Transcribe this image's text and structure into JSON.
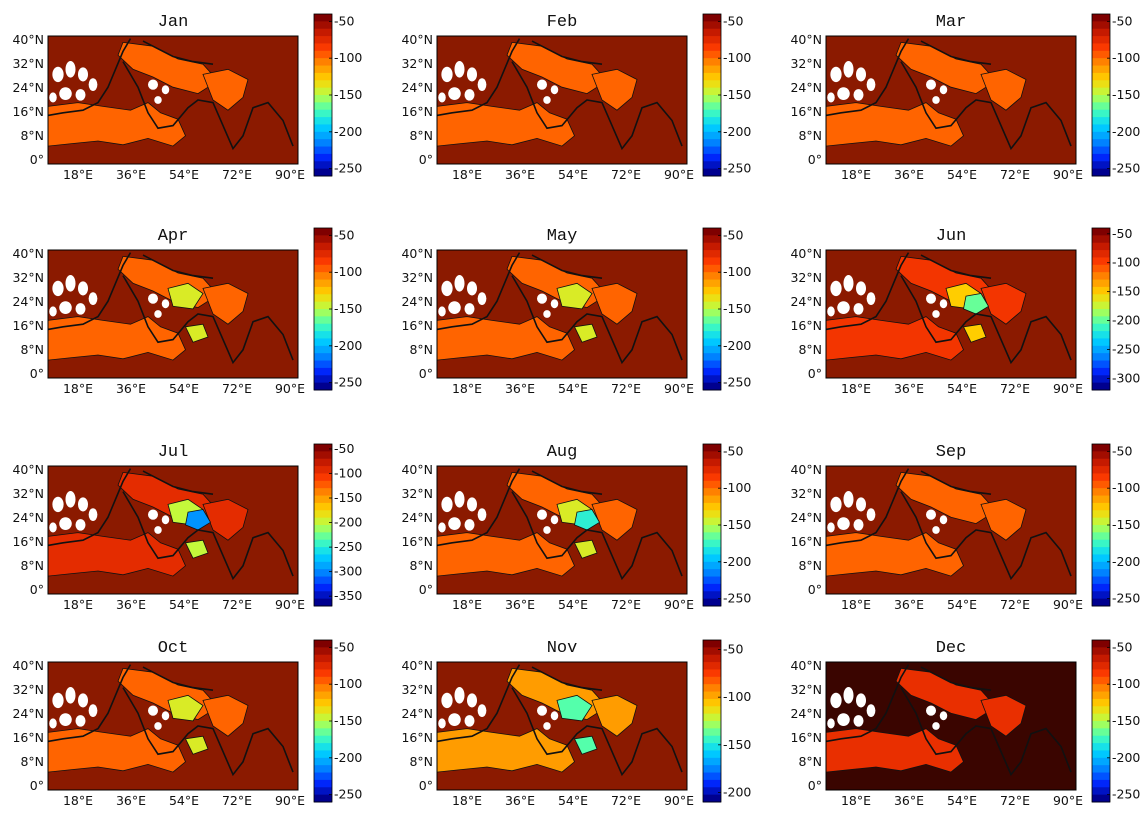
{
  "panels": [
    {
      "title": "Jan",
      "cb_labels": [
        "-50",
        "-100",
        "-150",
        "-200",
        "-250"
      ],
      "cb_min": -260,
      "cb_max": -40,
      "lat_labels": [
        "40°N",
        "32°N",
        "24°N",
        "16°N",
        "8°N",
        "0°"
      ],
      "lon_labels": [
        "18°E",
        "36°E",
        "54°E",
        "72°E",
        "90°E"
      ],
      "patches": [
        {
          "level": -95
        }
      ]
    },
    {
      "title": "Feb",
      "cb_labels": [
        "-50",
        "-100",
        "-150",
        "-200",
        "-250"
      ],
      "cb_min": -260,
      "cb_max": -40,
      "lat_labels": [
        "40°N",
        "32°N",
        "24°N",
        "16°N",
        "8°N",
        "0°"
      ],
      "lon_labels": [
        "18°E",
        "36°E",
        "54°E",
        "72°E",
        "90°E"
      ],
      "patches": [
        {
          "level": -95
        }
      ]
    },
    {
      "title": "Mar",
      "cb_labels": [
        "-50",
        "-100",
        "-150",
        "-200",
        "-250"
      ],
      "cb_min": -260,
      "cb_max": -40,
      "lat_labels": [
        "40°N",
        "32°N",
        "24°N",
        "16°N",
        "8°N",
        "0°"
      ],
      "lon_labels": [
        "18°E",
        "36°E",
        "54°E",
        "72°E",
        "90°E"
      ],
      "patches": [
        {
          "level": -95
        }
      ]
    },
    {
      "title": "Apr",
      "cb_labels": [
        "-50",
        "-100",
        "-150",
        "-200",
        "-250"
      ],
      "cb_min": -260,
      "cb_max": -40,
      "lat_labels": [
        "40°N",
        "32°N",
        "24°N",
        "16°N",
        "8°N",
        "0°"
      ],
      "lon_labels": [
        "18°E",
        "36°E",
        "54°E",
        "72°E",
        "90°E"
      ],
      "patches": [
        {
          "level": -95
        },
        {
          "level": -140
        }
      ]
    },
    {
      "title": "May",
      "cb_labels": [
        "-50",
        "-100",
        "-150",
        "-200",
        "-250"
      ],
      "cb_min": -260,
      "cb_max": -40,
      "lat_labels": [
        "40°N",
        "32°N",
        "24°N",
        "16°N",
        "8°N",
        "0°"
      ],
      "lon_labels": [
        "18°E",
        "36°E",
        "54°E",
        "72°E",
        "90°E"
      ],
      "patches": [
        {
          "level": -95
        },
        {
          "level": -140
        }
      ]
    },
    {
      "title": "Jun",
      "cb_labels": [
        "-50",
        "-100",
        "-150",
        "-200",
        "-250",
        "-300"
      ],
      "cb_min": -320,
      "cb_max": -40,
      "lat_labels": [
        "40°N",
        "32°N",
        "24°N",
        "16°N",
        "8°N",
        "0°"
      ],
      "lon_labels": [
        "18°E",
        "36°E",
        "54°E",
        "72°E",
        "90°E"
      ],
      "patches": [
        {
          "level": -90
        },
        {
          "level": -150
        },
        {
          "level": -200
        }
      ]
    },
    {
      "title": "Jul",
      "cb_labels": [
        "-50",
        "-100",
        "-150",
        "-200",
        "-250",
        "-300",
        "-350"
      ],
      "cb_min": -370,
      "cb_max": -40,
      "lat_labels": [
        "40°N",
        "32°N",
        "24°N",
        "16°N",
        "8°N",
        "0°"
      ],
      "lon_labels": [
        "18°E",
        "36°E",
        "54°E",
        "72°E",
        "90°E"
      ],
      "patches": [
        {
          "level": -90
        },
        {
          "level": -200
        },
        {
          "level": -300
        }
      ]
    },
    {
      "title": "Aug",
      "cb_labels": [
        "-50",
        "-100",
        "-150",
        "-200",
        "-250"
      ],
      "cb_min": -260,
      "cb_max": -40,
      "lat_labels": [
        "40°N",
        "32°N",
        "24°N",
        "16°N",
        "8°N",
        "0°"
      ],
      "lon_labels": [
        "18°E",
        "36°E",
        "54°E",
        "72°E",
        "90°E"
      ],
      "patches": [
        {
          "level": -95
        },
        {
          "level": -140
        },
        {
          "level": -180
        }
      ]
    },
    {
      "title": "Sep",
      "cb_labels": [
        "-50",
        "-100",
        "-150",
        "-200",
        "-250"
      ],
      "cb_min": -260,
      "cb_max": -40,
      "lat_labels": [
        "40°N",
        "32°N",
        "24°N",
        "16°N",
        "8°N",
        "0°"
      ],
      "lon_labels": [
        "18°E",
        "36°E",
        "54°E",
        "72°E",
        "90°E"
      ],
      "patches": [
        {
          "level": -95
        }
      ]
    },
    {
      "title": "Oct",
      "cb_labels": [
        "-50",
        "-100",
        "-150",
        "-200",
        "-250"
      ],
      "cb_min": -260,
      "cb_max": -40,
      "lat_labels": [
        "40°N",
        "32°N",
        "24°N",
        "16°N",
        "8°N",
        "0°"
      ],
      "lon_labels": [
        "18°E",
        "36°E",
        "54°E",
        "72°E",
        "90°E"
      ],
      "patches": [
        {
          "level": -95
        },
        {
          "level": -140
        }
      ]
    },
    {
      "title": "Nov",
      "cb_labels": [
        "-50",
        "-100",
        "-150",
        "-200"
      ],
      "cb_min": -210,
      "cb_max": -40,
      "lat_labels": [
        "40°N",
        "32°N",
        "24°N",
        "16°N",
        "8°N",
        "0°"
      ],
      "lon_labels": [
        "18°E",
        "36°E",
        "54°E",
        "72°E",
        "90°E"
      ],
      "patches": [
        {
          "level": -95
        },
        {
          "level": -140
        }
      ]
    },
    {
      "title": "Dec",
      "cb_labels": [
        "-50",
        "-100",
        "-150",
        "-200",
        "-250"
      ],
      "cb_min": -260,
      "cb_max": -40,
      "lat_labels": [
        "40°N",
        "32°N",
        "24°N",
        "16°N",
        "8°N",
        "0°"
      ],
      "lon_labels": [
        "18°E",
        "36°E",
        "54°E",
        "72°E",
        "90°E"
      ],
      "patches": [
        {
          "level": -75
        }
      ]
    }
  ],
  "colors": {
    "background_field": "#8b1a00",
    "dec_background": "#3a0500",
    "land_mask": "#ffffff",
    "coastline": "#111111",
    "colormap": [
      "#7f0000",
      "#c81b00",
      "#ff3c00",
      "#ff8c00",
      "#ffd200",
      "#b9ff46",
      "#46ffb9",
      "#00d2ff",
      "#008cff",
      "#0028ff",
      "#00008f"
    ]
  }
}
